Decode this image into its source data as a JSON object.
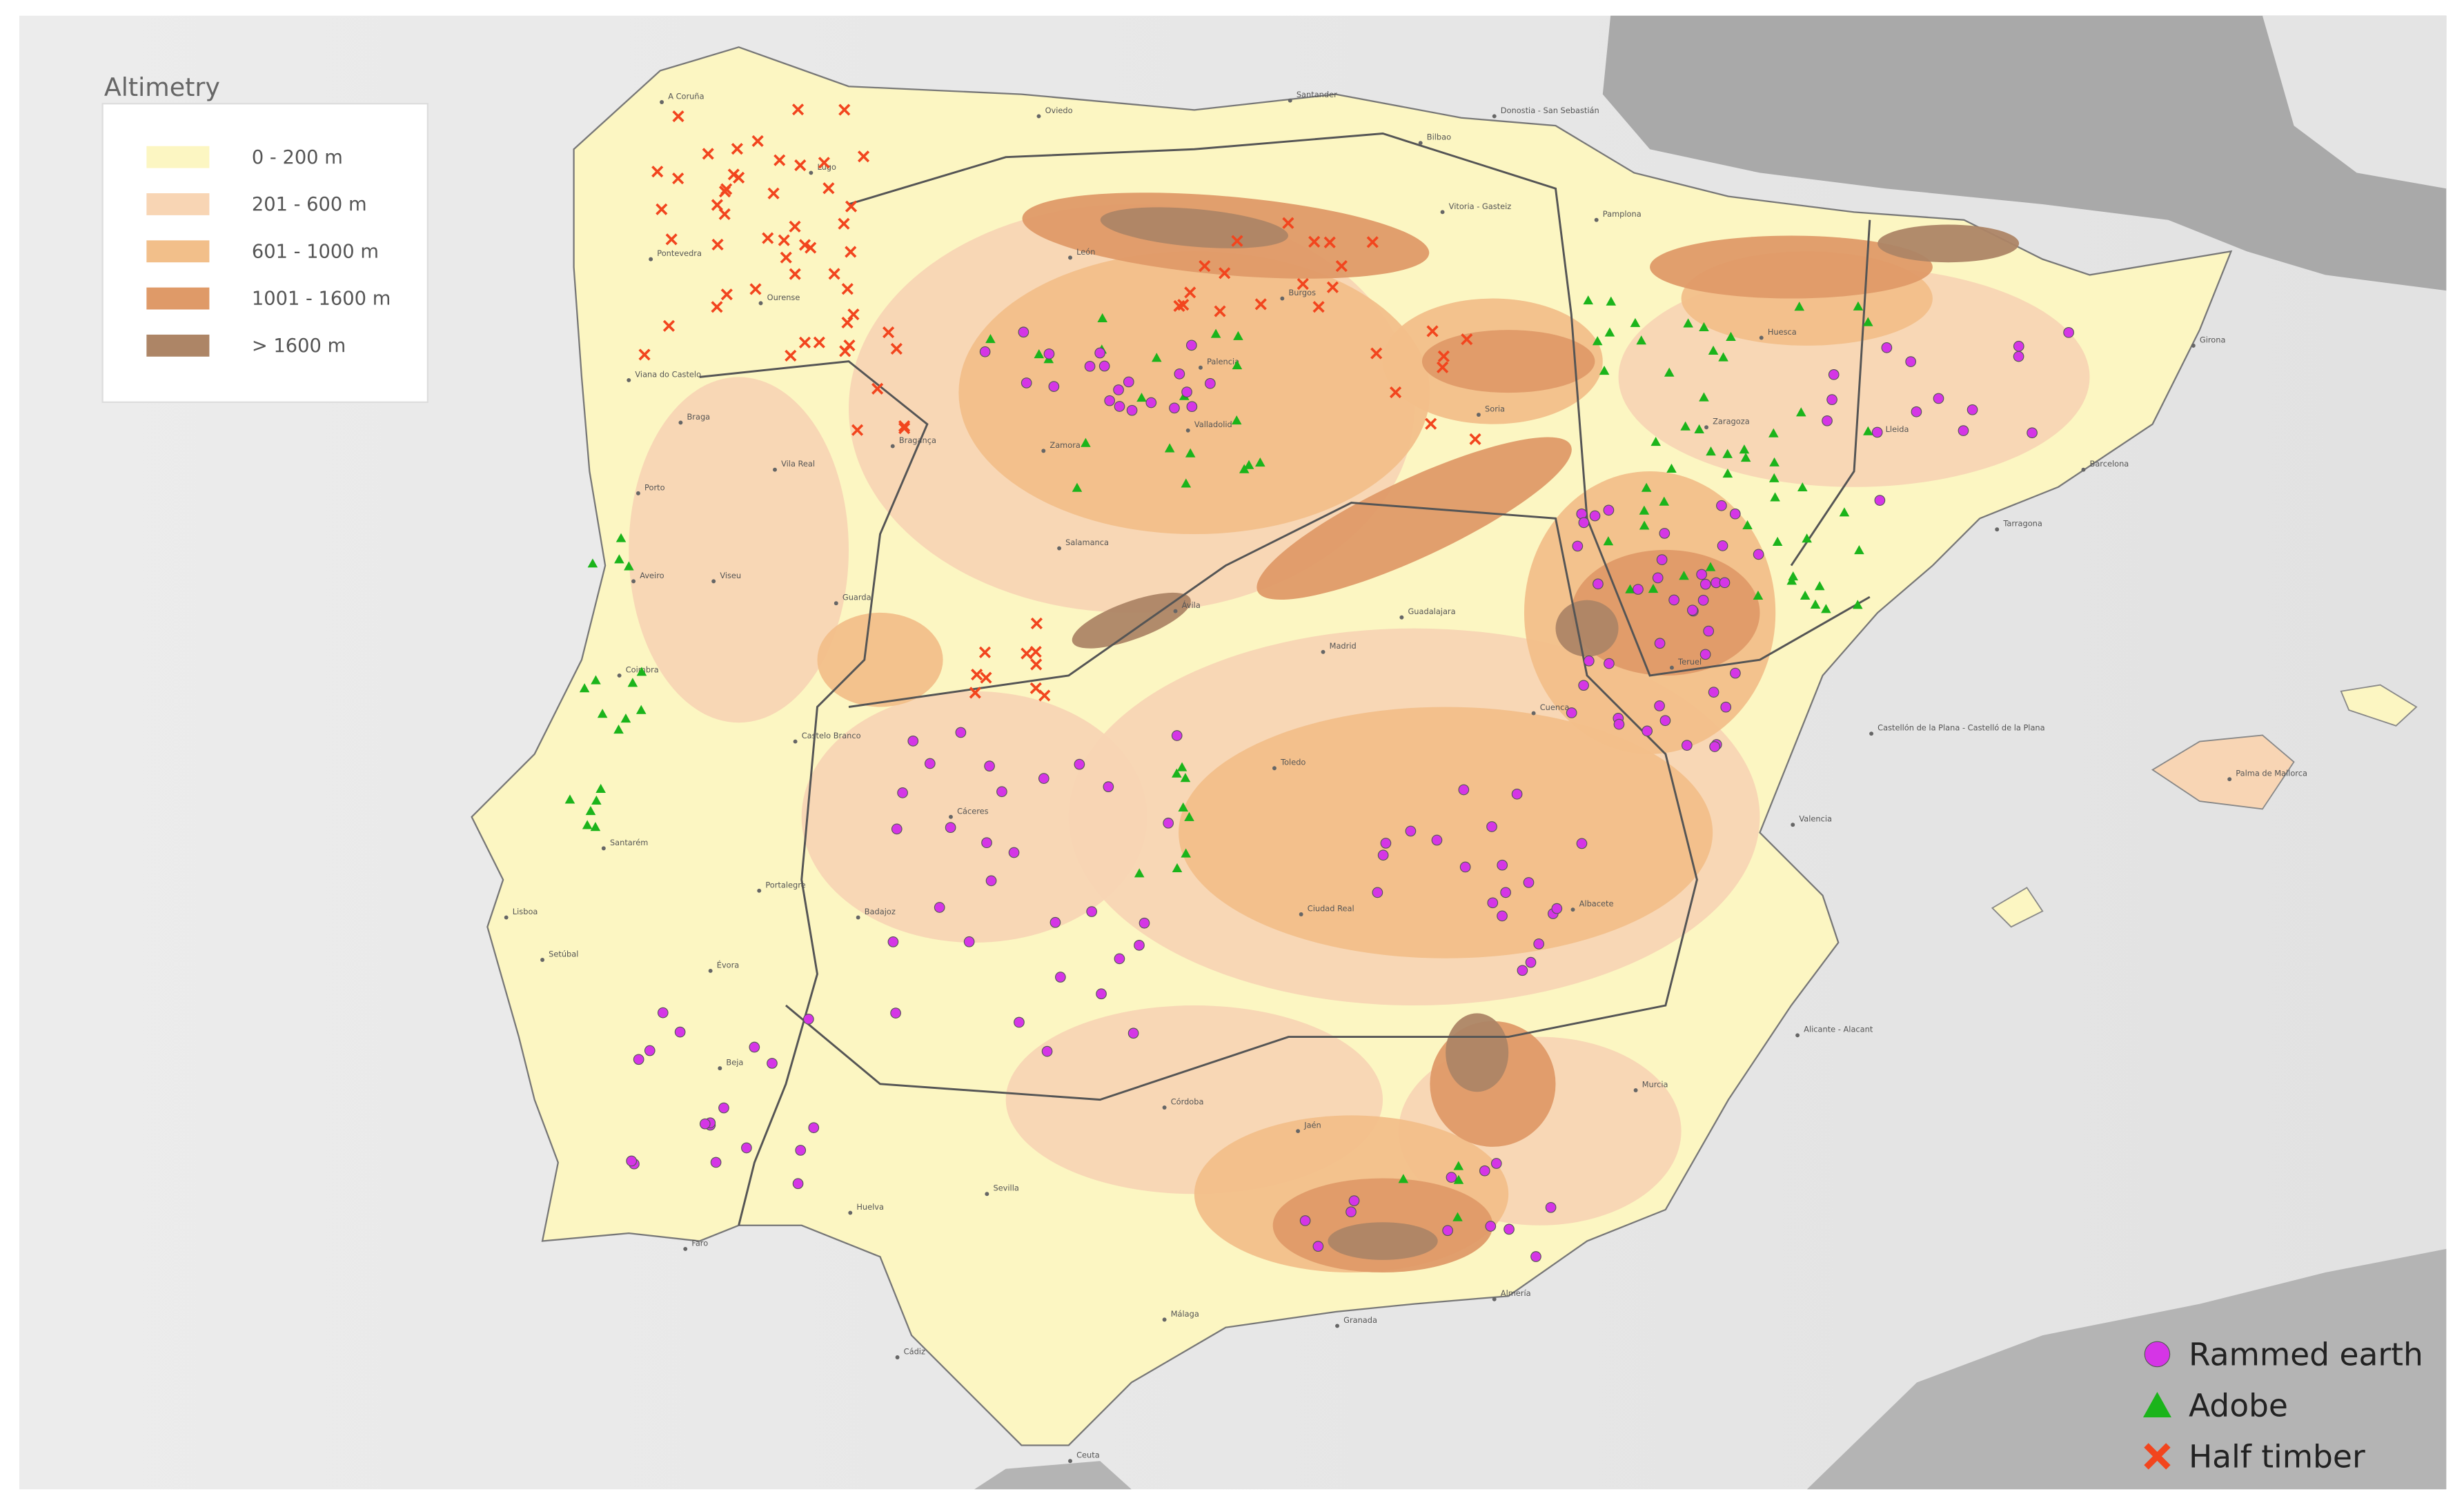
{
  "legend": {
    "title": "Altimetry",
    "items": [
      {
        "label": "0 - 200 m",
        "color": "#fcf6c2"
      },
      {
        "label": "201 - 600 m",
        "color": "#f8d5b4"
      },
      {
        "label": "601 - 1000 m",
        "color": "#f2bf8a"
      },
      {
        "label": "1001 - 1600 m",
        "color": "#df9a68"
      },
      {
        "label": "> 1600 m",
        "color": "#ad8566"
      }
    ]
  },
  "markers_legend": [
    {
      "label": "Rammed earth",
      "color": "#d535e6"
    },
    {
      "label": "Adobe",
      "color": "#1bb41b"
    },
    {
      "label": "Half timber",
      "color": "#f2451e"
    }
  ],
  "places": [
    "A Coruña",
    "Lugo",
    "Oviedo",
    "Santander",
    "Bilbao",
    "Donostia - San Sebastián",
    "Vitoria - Gasteiz",
    "Pamplona",
    "León",
    "Burgos",
    "Palencia",
    "Valladolid",
    "Zamora",
    "Soria",
    "Zaragoza",
    "Huesca",
    "Lleida",
    "Girona",
    "Barcelona",
    "Tarragona",
    "Salamanca",
    "Ávila",
    "Madrid",
    "Guadalajara",
    "Cuenca",
    "Teruel",
    "Castellón de la Plana - Castelló de la Plana",
    "Valencia",
    "Toledo",
    "Ciudad Real",
    "Albacete",
    "Alicante - Alacant",
    "Murcia",
    "Cáceres",
    "Badajoz",
    "Córdoba",
    "Jaén",
    "Granada",
    "Almería",
    "Málaga",
    "Sevilla",
    "Huelva",
    "Cádiz",
    "Ceuta",
    "Palma de Mallorca",
    "Lisboa",
    "Porto",
    "Braga",
    "Faro",
    "Beja",
    "Évora",
    "Setúbal",
    "Santarém",
    "Coimbra",
    "Viseu",
    "Guarda",
    "Castelo Branco",
    "Portalegre",
    "Aveiro",
    "Bragança",
    "Vila Real",
    "Viana do Castelo",
    "Ourense",
    "Pontevedra"
  ]
}
